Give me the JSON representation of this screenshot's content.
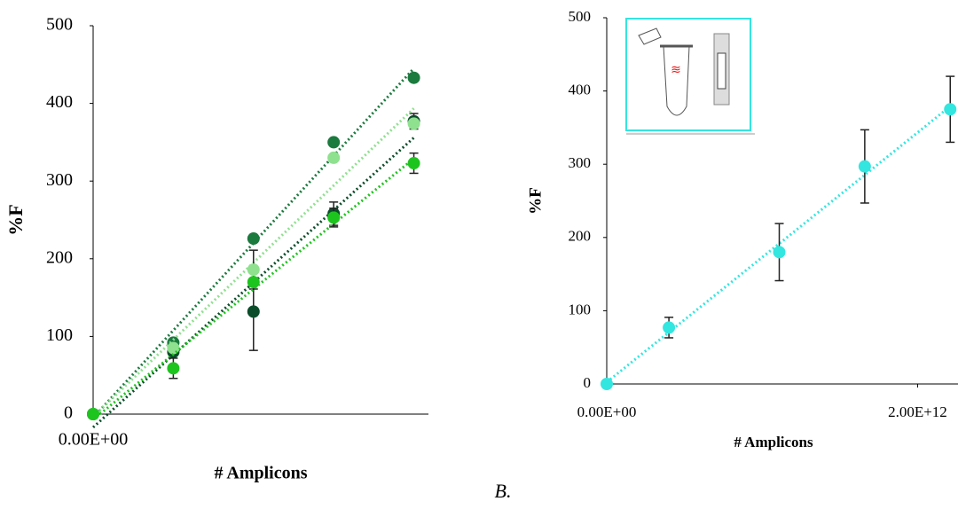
{
  "figure_label": "B.",
  "chart_data": [
    {
      "type": "scatter",
      "x_label": "# Amplicons",
      "y_label": "%F",
      "xlim": [
        0,
        2300000000000
      ],
      "xticks": [
        {
          "value": 0,
          "label": "0.00E+00"
        }
      ],
      "ylim": [
        0,
        500
      ],
      "yticks": [
        0,
        100,
        200,
        300,
        400,
        500
      ],
      "trendline": true,
      "series": [
        {
          "color": "#1b7a3e",
          "x": [
            0,
            550000000000,
            1100000000000,
            1650000000000,
            2200000000000
          ],
          "values": [
            0,
            92,
            226,
            350,
            433
          ],
          "errors": [
            null,
            null,
            null,
            null,
            null
          ]
        },
        {
          "color": "#0b4d2a",
          "x": [
            0,
            550000000000,
            1100000000000,
            1650000000000,
            2200000000000
          ],
          "values": [
            0,
            80,
            132,
            258,
            377
          ],
          "errors": [
            null,
            null,
            50,
            15,
            10
          ]
        },
        {
          "color": "#8fe08f",
          "x": [
            0,
            550000000000,
            1100000000000,
            1650000000000,
            2200000000000
          ],
          "values": [
            0,
            85,
            186,
            330,
            374
          ],
          "errors": [
            null,
            null,
            25,
            null,
            null
          ]
        },
        {
          "color": "#1ec41e",
          "x": [
            0,
            550000000000,
            1100000000000,
            1650000000000,
            2200000000000
          ],
          "values": [
            0,
            59,
            170,
            253,
            323
          ],
          "errors": [
            null,
            13,
            null,
            12,
            13
          ]
        }
      ]
    },
    {
      "type": "scatter",
      "x_label": "# Amplicons",
      "y_label": "%F",
      "xlim": [
        0,
        2260000000000
      ],
      "xticks": [
        {
          "value": 0,
          "label": "0.00E+00"
        },
        {
          "value": 2000000000000,
          "label": "2.00E+12"
        }
      ],
      "ylim": [
        0,
        500
      ],
      "yticks": [
        0,
        100,
        200,
        300,
        400,
        500
      ],
      "trendline": true,
      "series": [
        {
          "color": "#33e6e0",
          "x": [
            0,
            400000000000,
            1110000000000,
            1660000000000,
            2210000000000
          ],
          "values": [
            0,
            77,
            180,
            297,
            375
          ],
          "errors": [
            null,
            14,
            39,
            50,
            45
          ]
        }
      ]
    }
  ]
}
